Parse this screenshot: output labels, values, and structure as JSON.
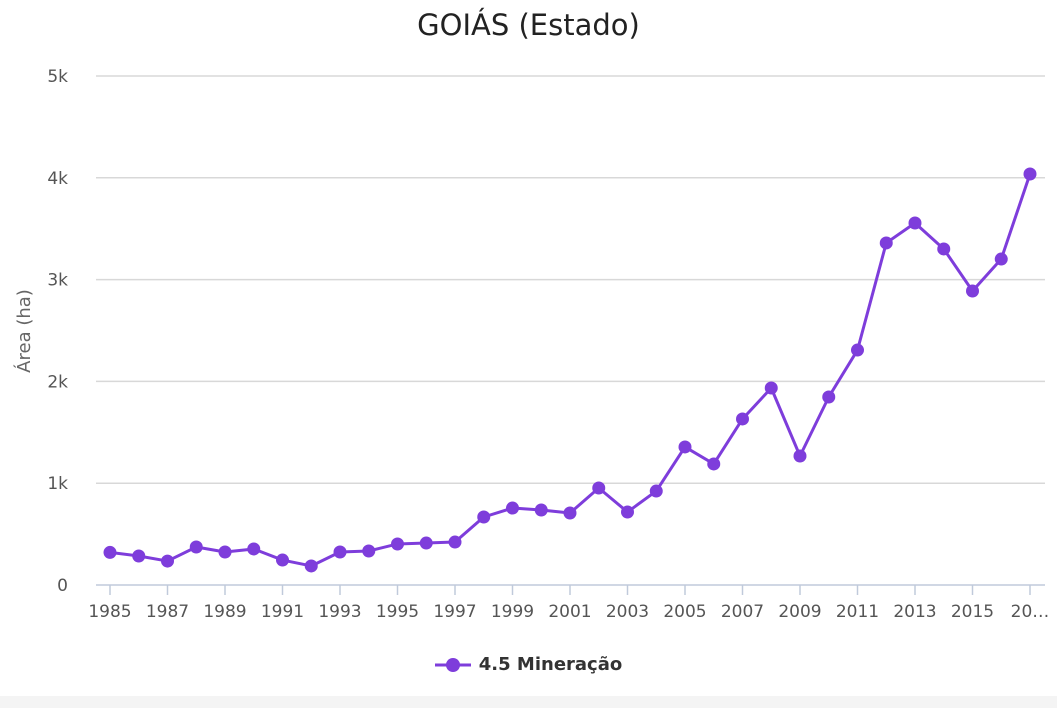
{
  "chart_data": {
    "type": "line",
    "title": "GOIÁS (Estado)",
    "ylabel": "Área (ha)",
    "xlabel": "",
    "ylim": [
      0,
      5000
    ],
    "y_ticks": [
      0,
      1000,
      2000,
      3000,
      4000,
      5000
    ],
    "y_tick_labels": [
      "0",
      "1k",
      "2k",
      "3k",
      "4k",
      "5k"
    ],
    "x": [
      1985,
      1986,
      1987,
      1988,
      1989,
      1990,
      1991,
      1992,
      1993,
      1994,
      1995,
      1996,
      1997,
      1998,
      1999,
      2000,
      2001,
      2002,
      2003,
      2004,
      2005,
      2006,
      2007,
      2008,
      2009,
      2010,
      2011,
      2012,
      2013,
      2014,
      2015,
      2016,
      2017
    ],
    "x_tick_labels": [
      "1985",
      "1987",
      "1989",
      "1991",
      "1993",
      "1995",
      "1997",
      "1999",
      "2001",
      "2003",
      "2005",
      "2007",
      "2009",
      "2011",
      "2013",
      "2015",
      "20…"
    ],
    "grid": true,
    "legend_position": "bottom",
    "series": [
      {
        "name": "4.5 Mineração",
        "color": "#7e3ddb",
        "values": [
          320,
          285,
          235,
          373,
          324,
          354,
          245,
          187,
          324,
          334,
          403,
          412,
          422,
          668,
          756,
          737,
          707,
          953,
          717,
          923,
          1356,
          1189,
          1631,
          1935,
          1267,
          1847,
          2308,
          3360,
          3556,
          3301,
          2888,
          3202,
          4037
        ]
      }
    ]
  }
}
